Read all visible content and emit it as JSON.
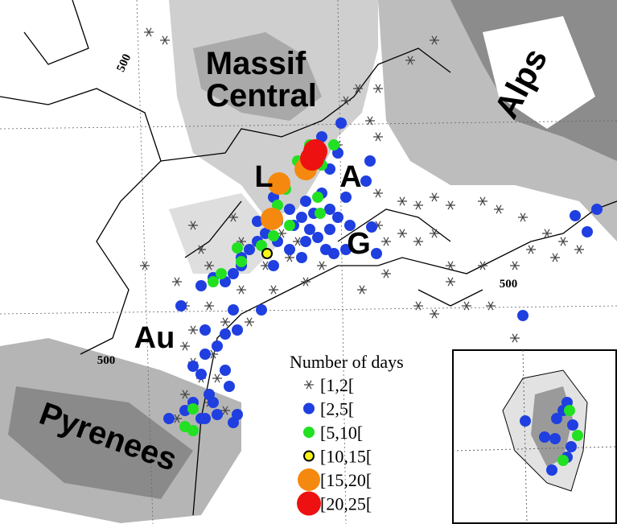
{
  "regions": {
    "massif": "Massif",
    "central": "Central",
    "alps": "Alps",
    "l": "L",
    "a": "A",
    "g": "G",
    "au": "Au",
    "pyrenees": "Pyrenees"
  },
  "contour_labels": [
    "500",
    "500",
    "500"
  ],
  "legend": {
    "title": "Number of days",
    "items": [
      {
        "label": "[1,2[",
        "color": "#444444"
      },
      {
        "label": "[2,5[",
        "color": "#1f3fe0"
      },
      {
        "label": "[5,10[",
        "color": "#22e022"
      },
      {
        "label": "[10,15[",
        "color": "#f5f514"
      },
      {
        "label": "[15,20[",
        "color": "#f5890f"
      },
      {
        "label": "[20,25[",
        "color": "#ee1111"
      }
    ]
  }
}
